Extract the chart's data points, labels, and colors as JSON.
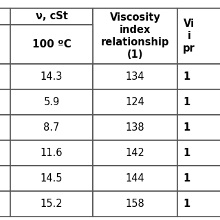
{
  "col1_header": "ν, cSt",
  "col2_header": "Viscosity\nindex\nrelationship\n(1)",
  "col3_header": "Vi\ni\npr",
  "sub_col1_header": "100 ºC",
  "col1_values": [
    "14.3",
    "5.9",
    "8.7",
    "11.6",
    "14.5",
    "15.2"
  ],
  "col2_values": [
    "134",
    "124",
    "138",
    "142",
    "144",
    "158"
  ],
  "col3_values": [
    "1",
    "1",
    "1",
    "1",
    "1",
    "1"
  ],
  "bg_color": "white",
  "border_color": "#555555",
  "text_color": "black",
  "cell_fontsize": 10.5,
  "header_fontsize": 10.5
}
